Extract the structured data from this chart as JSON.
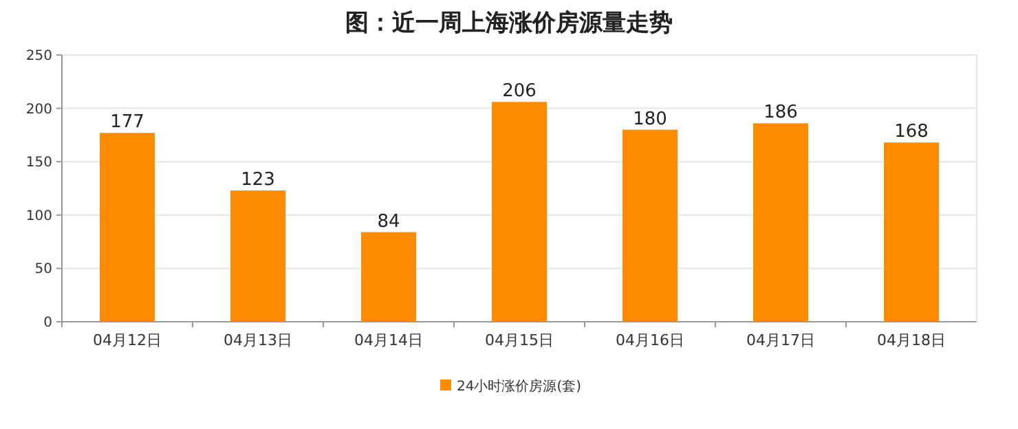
{
  "chart_data": {
    "type": "bar",
    "title": "图：近一周上海涨价房源量走势",
    "categories": [
      "04月12日",
      "04月13日",
      "04月14日",
      "04月15日",
      "04月16日",
      "04月17日",
      "04月18日"
    ],
    "series": [
      {
        "name": "24小时涨价房源(套)",
        "color": "#ff8c00",
        "values": [
          177,
          123,
          84,
          206,
          180,
          186,
          168
        ]
      }
    ],
    "ylim": [
      0,
      250
    ],
    "yticks": [
      0,
      50,
      100,
      150,
      200,
      250
    ],
    "grid": "y",
    "legend": "bottom",
    "data_labels": true
  }
}
